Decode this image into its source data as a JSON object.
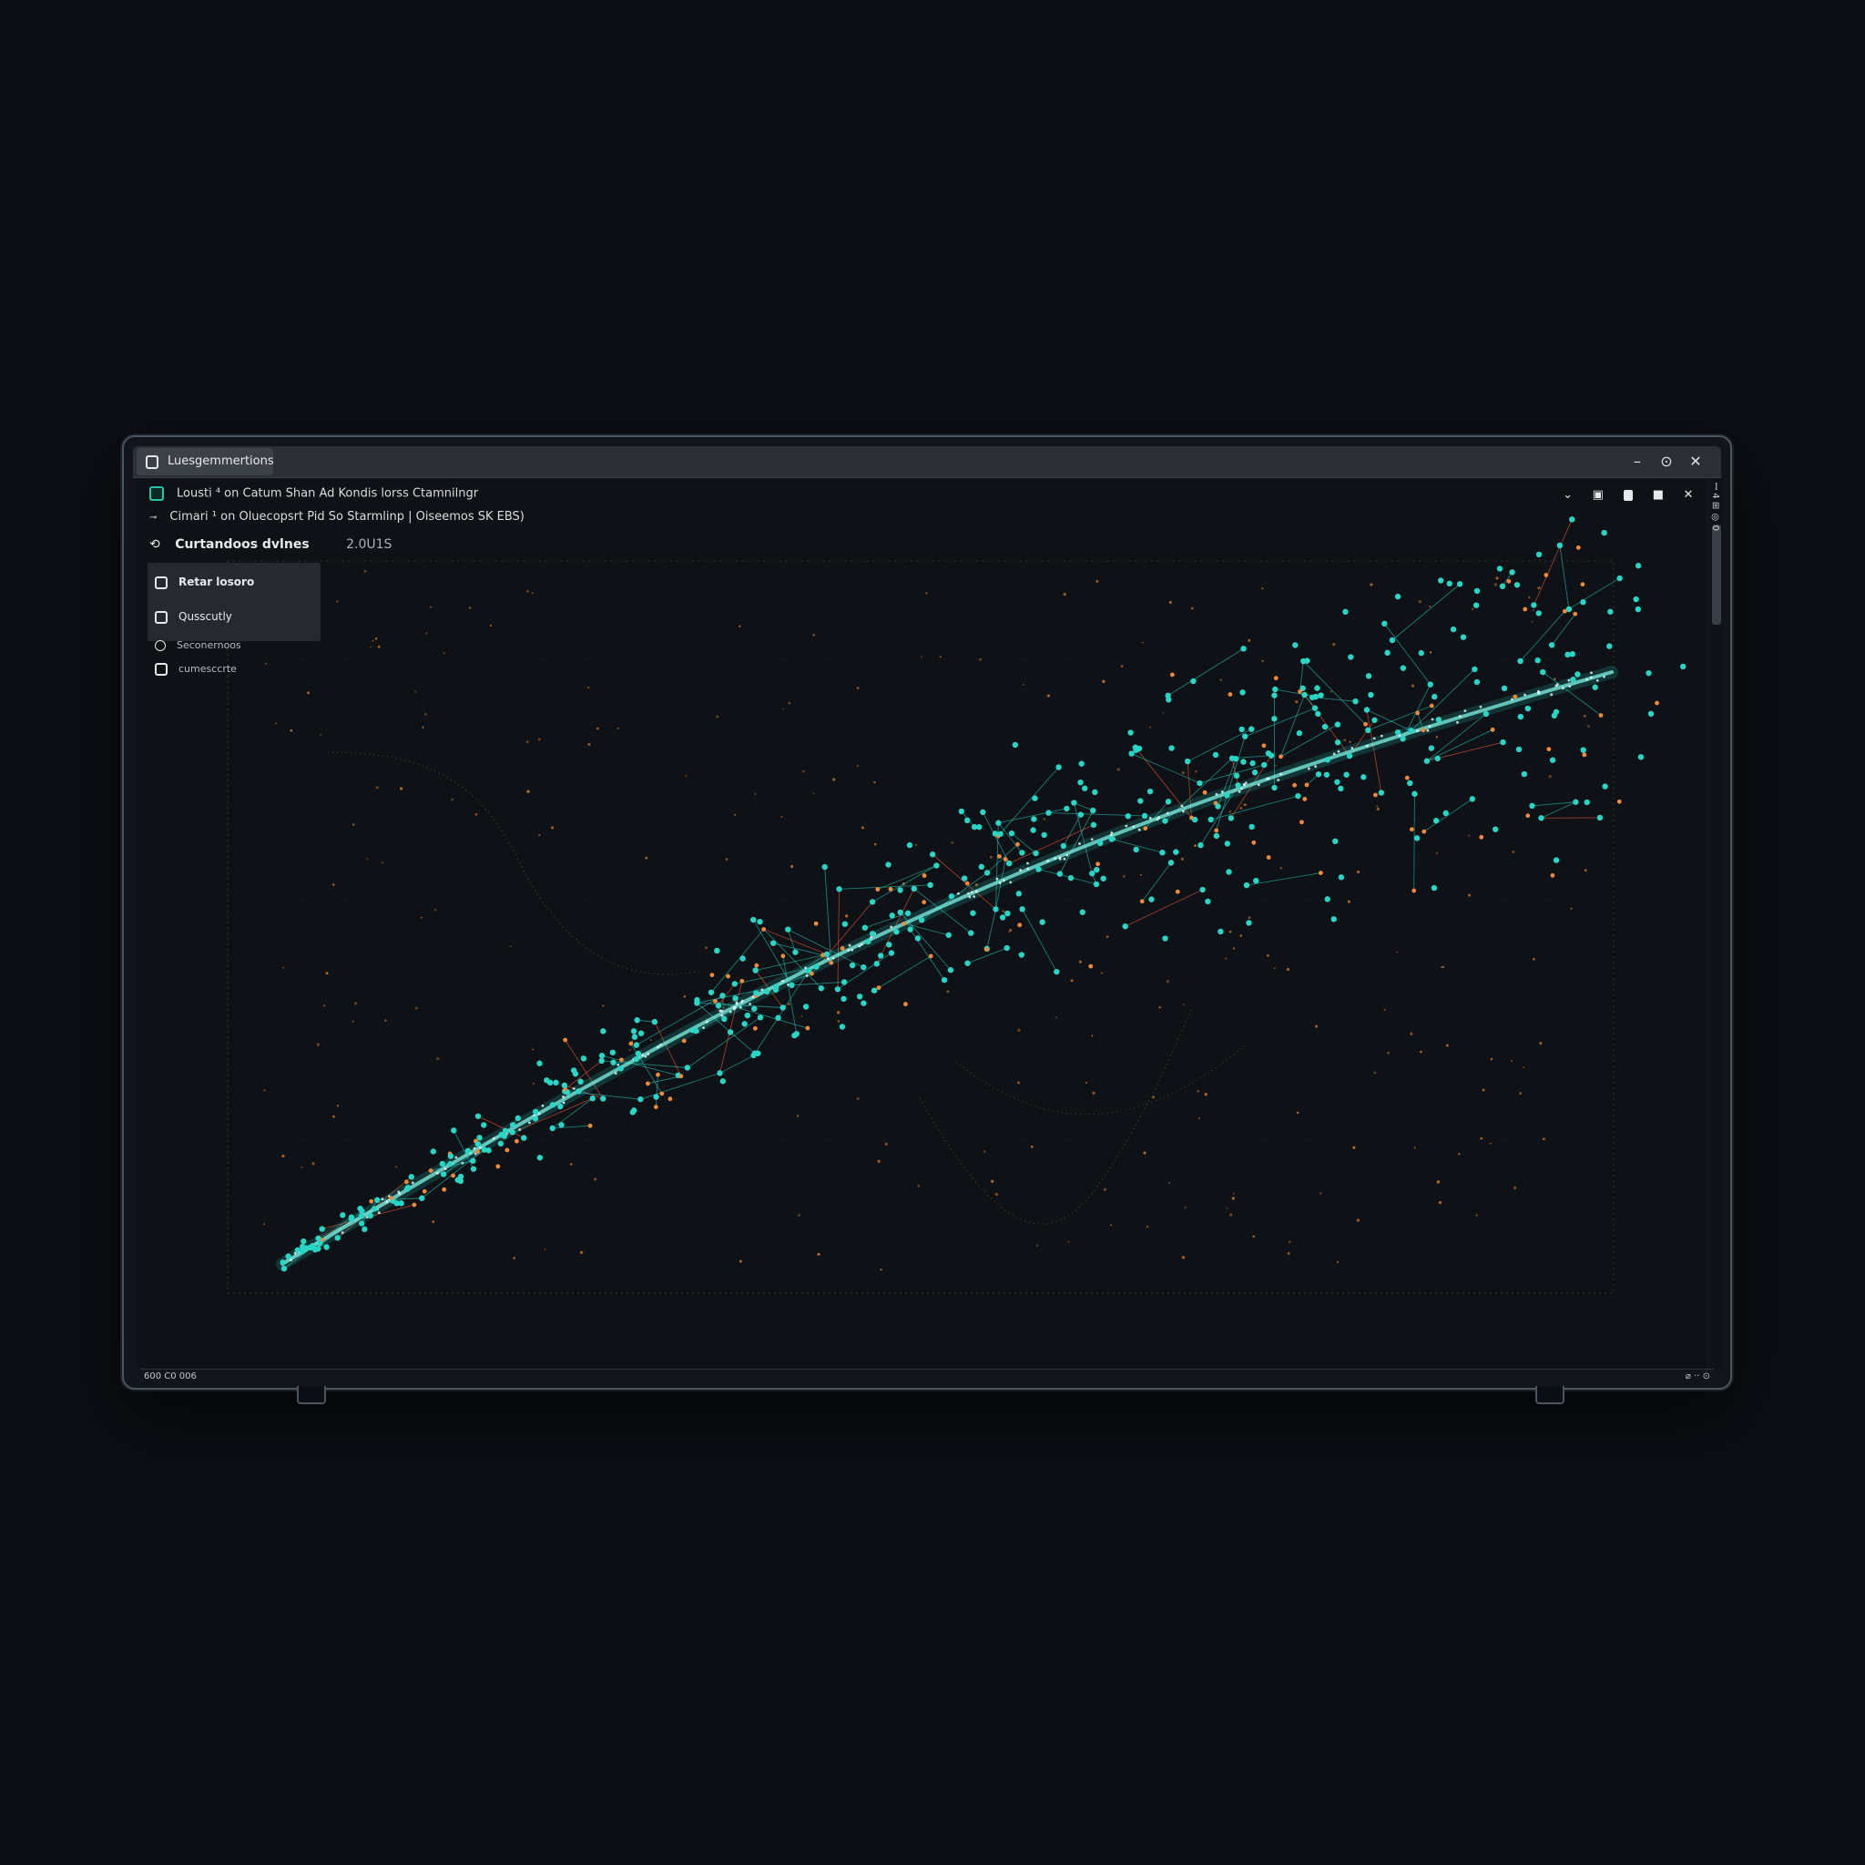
{
  "window": {
    "tab_title": "Luesgemmertions",
    "controls": [
      "–",
      "⊙",
      "✕"
    ]
  },
  "toolbar": {
    "line1": "Lousti    ⁴ on  Catum  Shan  Ad  Kondis  lorss  Ctamnilngr",
    "line2": "Cimari    ¹ on  Oluecopsrt  Pid  So  Starmlinp  |  Oiseemos  SK  EBS)",
    "right_tools": [
      "⌄",
      "▣",
      "▪",
      "■",
      "✕"
    ]
  },
  "header": {
    "select_label": "Curtandoos dvlnes",
    "count": "2.0U1S"
  },
  "options": [
    {
      "label": "Retar losoro",
      "type": "checkbox"
    },
    {
      "label": "Qusscutly",
      "type": "checkbox"
    },
    {
      "label": "Seconernoos",
      "type": "radio"
    },
    {
      "label": "cumesccrte",
      "type": "checkbox"
    }
  ],
  "scroll_vertical_text": "ꟷ 4 ⊞ ◎ 0",
  "status": {
    "left": "600 C0 006",
    "right": "⌀ ·· ⊙"
  },
  "colors": {
    "node_teal": "#29d6c6",
    "node_orange": "#f08a3a",
    "edge_red": "#d9503a",
    "grid": "#2a2f34"
  }
}
